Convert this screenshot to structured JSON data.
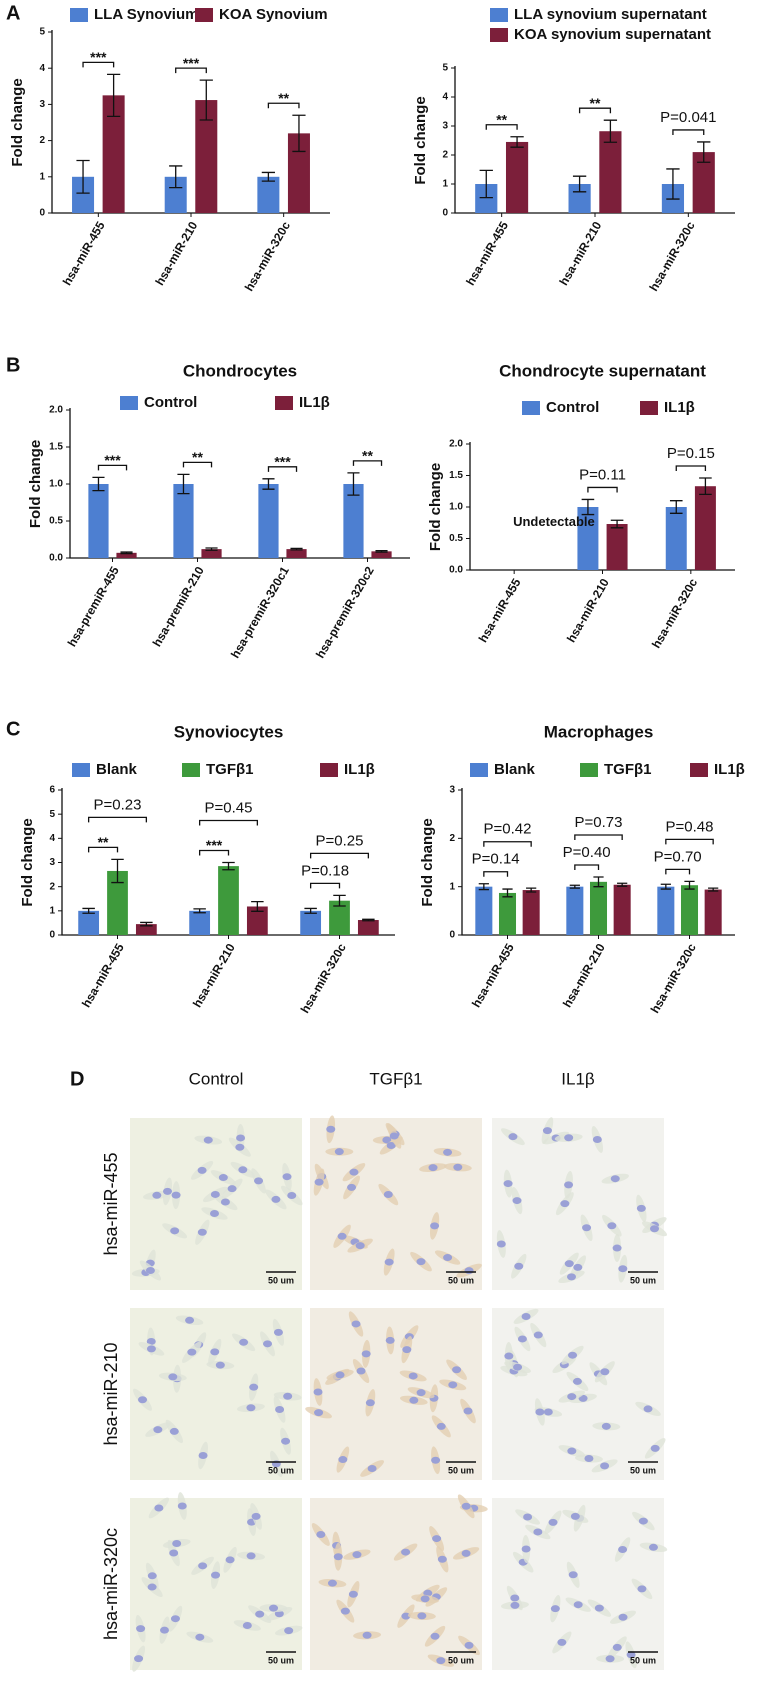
{
  "panel_labels": [
    "A",
    "B",
    "C",
    "D"
  ],
  "chart_data": [
    {
      "type": "bar",
      "y_label": "Fold change",
      "categories": [
        "hsa-miR-455",
        "hsa-miR-210",
        "hsa-miR-320c"
      ],
      "series": [
        {
          "name": "LLA Synovium",
          "color": "#4d7fd1",
          "values": [
            1,
            1,
            1
          ],
          "errors": [
            0.45,
            0.3,
            0.12
          ]
        },
        {
          "name": "KOA Synovium",
          "color": "#7c1f3a",
          "values": [
            3.25,
            3.12,
            2.2
          ],
          "errors": [
            0.58,
            0.55,
            0.5
          ]
        }
      ],
      "annotations": [
        [
          "***"
        ],
        [
          "***"
        ],
        [
          "**"
        ]
      ],
      "ylim": [
        0,
        5
      ],
      "yticks": [
        0,
        1,
        2,
        3,
        4,
        5
      ]
    },
    {
      "type": "bar",
      "y_label": "Fold change",
      "categories": [
        "hsa-miR-455",
        "hsa-miR-210",
        "hsa-miR-320c"
      ],
      "series": [
        {
          "name": "LLA synovium supernatant",
          "color": "#4d7fd1",
          "values": [
            1,
            1,
            1
          ],
          "errors": [
            0.47,
            0.27,
            0.52
          ]
        },
        {
          "name": "KOA synovium supernatant",
          "color": "#7c1f3a",
          "values": [
            2.45,
            2.82,
            2.1
          ],
          "errors": [
            0.18,
            0.38,
            0.35
          ]
        }
      ],
      "annotations": [
        [
          "**"
        ],
        [
          "**"
        ],
        [
          "P=0.041"
        ]
      ],
      "ylim": [
        0,
        5
      ],
      "yticks": [
        0,
        1,
        2,
        3,
        4,
        5
      ]
    },
    {
      "type": "bar",
      "title": "Chondrocytes",
      "y_label": "Fold change",
      "categories": [
        "hsa-premiR-455",
        "hsa-premiR-210",
        "hsa-premiR-320c1",
        "hsa-premiR-320c2"
      ],
      "series": [
        {
          "name": "Control",
          "color": "#4d7fd1",
          "values": [
            1,
            1,
            1,
            1
          ],
          "errors": [
            0.09,
            0.13,
            0.07,
            0.15
          ]
        },
        {
          "name": "IL1β",
          "color": "#7c1f3a",
          "values": [
            0.07,
            0.12,
            0.12,
            0.09
          ],
          "errors": [
            0.01,
            0.015,
            0.01,
            0.01
          ]
        }
      ],
      "annotations": [
        [
          "***"
        ],
        [
          "**"
        ],
        [
          "***"
        ],
        [
          "**"
        ]
      ],
      "ylim": [
        0,
        2
      ],
      "yticks": [
        {
          "value": 0,
          "label": "0.0"
        },
        0.5,
        {
          "value": 1,
          "label": "1.0"
        },
        1.5,
        {
          "value": 2,
          "label": "2.0"
        }
      ]
    },
    {
      "type": "bar",
      "title": "Chondrocyte supernatant",
      "y_label": "Fold change",
      "note": "Undetectable",
      "categories": [
        "hsa-miR-455",
        "hsa-miR-210",
        "hsa-miR-320c"
      ],
      "series": [
        {
          "name": "Control",
          "color": "#4d7fd1",
          "values": [
            null,
            1,
            1
          ],
          "errors": [
            null,
            0.12,
            0.1
          ]
        },
        {
          "name": "IL1β",
          "color": "#7c1f3a",
          "values": [
            null,
            0.73,
            1.33
          ],
          "errors": [
            null,
            0.06,
            0.13
          ]
        }
      ],
      "annotations": [
        [],
        [
          "P=0.11"
        ],
        [
          "P=0.15"
        ]
      ],
      "ylim": [
        0,
        2
      ],
      "yticks": [
        {
          "value": 0,
          "label": "0.0"
        },
        0.5,
        {
          "value": 1,
          "label": "1.0"
        },
        1.5,
        {
          "value": 2,
          "label": "2.0"
        }
      ]
    },
    {
      "type": "bar",
      "title": "Synoviocytes",
      "y_label": "Fold change",
      "categories": [
        "hsa-miR-455",
        "hsa-miR-210",
        "hsa-miR-320c"
      ],
      "series": [
        {
          "name": "Blank",
          "color": "#4d7fd1",
          "values": [
            1,
            1,
            1
          ],
          "errors": [
            0.1,
            0.08,
            0.1
          ]
        },
        {
          "name": "TGFβ1",
          "color": "#3e9a3c",
          "values": [
            2.65,
            2.85,
            1.42
          ],
          "errors": [
            0.48,
            0.15,
            0.22
          ]
        },
        {
          "name": "IL1β",
          "color": "#7c1f3a",
          "values": [
            0.45,
            1.18,
            0.62
          ],
          "errors": [
            0.07,
            0.2,
            0.03
          ]
        }
      ],
      "annotations": [
        [
          "**",
          "P=0.23"
        ],
        [
          "***",
          "P=0.45"
        ],
        [
          "P=0.18",
          "P=0.25"
        ]
      ],
      "ylim": [
        0,
        6
      ],
      "yticks": [
        0,
        1,
        2,
        3,
        4,
        5,
        6
      ]
    },
    {
      "type": "bar",
      "title": "Macrophages",
      "y_label": "Fold change",
      "categories": [
        "hsa-miR-455",
        "hsa-miR-210",
        "hsa-miR-320c"
      ],
      "series": [
        {
          "name": "Blank",
          "color": "#4d7fd1",
          "values": [
            1,
            1,
            1
          ],
          "errors": [
            0.06,
            0.03,
            0.05
          ]
        },
        {
          "name": "TGFβ1",
          "color": "#3e9a3c",
          "values": [
            0.87,
            1.1,
            1.03
          ],
          "errors": [
            0.08,
            0.1,
            0.08
          ]
        },
        {
          "name": "IL1β",
          "color": "#7c1f3a",
          "values": [
            0.93,
            1.04,
            0.94
          ],
          "errors": [
            0.04,
            0.03,
            0.03
          ]
        }
      ],
      "annotations": [
        [
          "P=0.14",
          "P=0.42"
        ],
        [
          "P=0.40",
          "P=0.73"
        ],
        [
          "P=0.70",
          "P=0.48"
        ]
      ],
      "ylim": [
        0,
        3
      ],
      "yticks": [
        0,
        1,
        2,
        3
      ]
    }
  ],
  "micrographs": {
    "columns": [
      "Control",
      "TGFβ1",
      "IL1β"
    ],
    "rows": [
      "hsa-miR-455",
      "hsa-miR-210",
      "hsa-miR-320c"
    ],
    "scale_bar": "50 um"
  }
}
